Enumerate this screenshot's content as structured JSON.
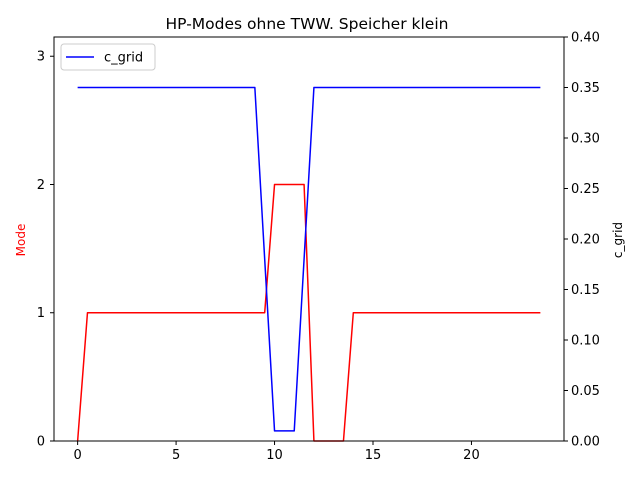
{
  "chart_data": {
    "type": "line",
    "title": "HP-Modes ohne TWW. Speicher klein",
    "xlabel": "",
    "y_left": {
      "label": "Mode",
      "color": "#ff0000",
      "range": [
        0,
        3.15
      ],
      "ticks": [
        0,
        1,
        2,
        3
      ]
    },
    "y_right": {
      "label": "c_grid",
      "color": "#000000",
      "range": [
        0,
        0.4
      ],
      "ticks": [
        "0.00",
        "0.05",
        "0.10",
        "0.15",
        "0.20",
        "0.25",
        "0.30",
        "0.35",
        "0.40"
      ]
    },
    "x_range": [
      -1.2,
      24.7
    ],
    "x_ticks": [
      0,
      5,
      10,
      15,
      20
    ],
    "legend": {
      "position": "top-left",
      "entries": [
        "c_grid"
      ]
    },
    "series": [
      {
        "name": "Mode",
        "axis": "left",
        "color": "#ff0000",
        "x": [
          0,
          0.5,
          9.5,
          10,
          11.5,
          12,
          13.5,
          14,
          23.5
        ],
        "y": [
          0,
          1,
          1,
          2,
          2,
          0,
          0,
          1,
          1
        ]
      },
      {
        "name": "c_grid",
        "axis": "right",
        "color": "#0000ff",
        "x": [
          0,
          9,
          10,
          11,
          12,
          23.5
        ],
        "y": [
          0.35,
          0.35,
          0.01,
          0.01,
          0.35,
          0.35
        ]
      }
    ]
  }
}
